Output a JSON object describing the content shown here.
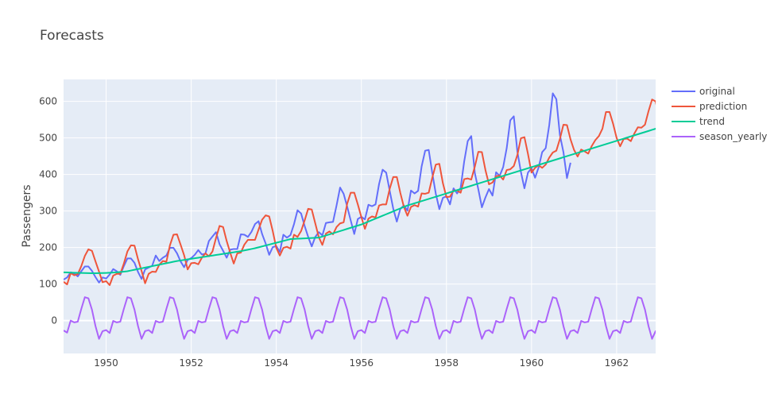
{
  "chart_data": {
    "type": "line",
    "title": "Forecasts",
    "xlabel": "",
    "ylabel": "Passengers",
    "xlim": [
      1949.0,
      1962.917
    ],
    "ylim": [
      -90,
      660
    ],
    "x_ticks": [
      1950,
      1952,
      1954,
      1956,
      1958,
      1960,
      1962
    ],
    "x_tick_labels": [
      "1950",
      "1952",
      "1954",
      "1956",
      "1958",
      "1960",
      "1962"
    ],
    "y_ticks": [
      0,
      100,
      200,
      300,
      400,
      500,
      600
    ],
    "y_tick_labels": [
      "0",
      "100",
      "200",
      "300",
      "400",
      "500",
      "600"
    ],
    "grid": true,
    "legend_position": "top-right",
    "x_start": 1949.0,
    "x_step": 0.08333,
    "series": [
      {
        "name": "original",
        "color": "#636efa",
        "values": [
          112,
          118,
          132,
          129,
          121,
          135,
          148,
          148,
          136,
          119,
          104,
          118,
          115,
          126,
          141,
          135,
          125,
          149,
          170,
          170,
          158,
          133,
          114,
          140,
          145,
          150,
          178,
          163,
          172,
          178,
          199,
          199,
          184,
          162,
          146,
          166,
          171,
          180,
          193,
          181,
          183,
          218,
          230,
          242,
          209,
          191,
          172,
          194,
          196,
          196,
          236,
          235,
          229,
          243,
          264,
          272,
          237,
          211,
          180,
          201,
          204,
          188,
          235,
          227,
          234,
          264,
          302,
          293,
          259,
          229,
          203,
          229,
          242,
          233,
          267,
          269,
          270,
          315,
          364,
          347,
          312,
          274,
          237,
          278,
          284,
          277,
          317,
          313,
          318,
          374,
          413,
          405,
          355,
          306,
          271,
          306,
          315,
          301,
          356,
          348,
          355,
          422,
          465,
          467,
          404,
          347,
          305,
          336,
          340,
          318,
          362,
          348,
          363,
          435,
          491,
          505,
          404,
          359,
          310,
          337,
          360,
          342,
          406,
          396,
          420,
          472,
          548,
          559,
          463,
          407,
          362,
          405,
          417,
          391,
          419,
          461,
          472,
          535,
          622,
          606,
          508,
          461,
          390,
          432
        ]
      },
      {
        "name": "prediction",
        "color": "#ef553b",
        "values": [
          106,
          99,
          130,
          124,
          127,
          149,
          177,
          195,
          191,
          162,
          134,
          105,
          108,
          97,
          123,
          128,
          128,
          156,
          189,
          206,
          205,
          168,
          136,
          102,
          128,
          134,
          133,
          153,
          163,
          161,
          206,
          235,
          236,
          208,
          179,
          140,
          157,
          158,
          154,
          172,
          184,
          176,
          189,
          226,
          259,
          256,
          218,
          186,
          156,
          184,
          186,
          208,
          221,
          221,
          221,
          249,
          276,
          288,
          285,
          245,
          199,
          178,
          199,
          202,
          197,
          235,
          229,
          245,
          274,
          306,
          304,
          266,
          228,
          207,
          238,
          244,
          236,
          256,
          266,
          269,
          320,
          350,
          350,
          318,
          283,
          251,
          279,
          285,
          282,
          315,
          318,
          318,
          361,
          393,
          393,
          349,
          311,
          287,
          311,
          316,
          312,
          348,
          347,
          350,
          391,
          427,
          429,
          376,
          338,
          339,
          356,
          356,
          350,
          387,
          389,
          386,
          421,
          462,
          461,
          412,
          373,
          378,
          395,
          397,
          386,
          412,
          414,
          423,
          453,
          499,
          502,
          456,
          405,
          418,
          425,
          418,
          427,
          446,
          460,
          465,
          497,
          536,
          535,
          496,
          467,
          449,
          468,
          463,
          457,
          478,
          494,
          505,
          525,
          571,
          571,
          539,
          500,
          477,
          497,
          498,
          491,
          512,
          529,
          528,
          536,
          573,
          605,
          600,
          556,
          522,
          504,
          524
        ]
      },
      {
        "name": "trend",
        "color": "#00cc96",
        "values": [
          132,
          131.7,
          131.3,
          131,
          130.7,
          130.3,
          130,
          129.8,
          129.7,
          129.5,
          129.8,
          130.2,
          130.5,
          131,
          131.5,
          132,
          133,
          134,
          135,
          137,
          139,
          141,
          143,
          145,
          147,
          149,
          151,
          153,
          155,
          157,
          159,
          161,
          163,
          164.5,
          166,
          167.5,
          169,
          170.5,
          172,
          173.5,
          175,
          176.5,
          178,
          179.5,
          181,
          182.5,
          184,
          185.5,
          187,
          188.5,
          190,
          192,
          194,
          196,
          198,
          200.5,
          203,
          205.5,
          208,
          210.5,
          213,
          215.5,
          218,
          220.5,
          223,
          223.5,
          224,
          224.5,
          225,
          225.5,
          226,
          226.5,
          227,
          230,
          233,
          236,
          239,
          242,
          245,
          248,
          251,
          254,
          257,
          260,
          263,
          267,
          271,
          275,
          279,
          283,
          287,
          291,
          295,
          299,
          303,
          307,
          311,
          315,
          318,
          321,
          324,
          327,
          330,
          333,
          336,
          339,
          342,
          345,
          348,
          351,
          354,
          357,
          360,
          363,
          366,
          369,
          372,
          375,
          378,
          381,
          384,
          387,
          390,
          393,
          396,
          399,
          402,
          405,
          408,
          411,
          414,
          417,
          420,
          423,
          426,
          429,
          432,
          435,
          438,
          441,
          444,
          447,
          450,
          453,
          456,
          459,
          462,
          465,
          468,
          471,
          474,
          477,
          480,
          483,
          486,
          489,
          492,
          495,
          498,
          501,
          504,
          507,
          510,
          513,
          516,
          519,
          522,
          525,
          528,
          531,
          534,
          537,
          540,
          543,
          546,
          549,
          552,
          555,
          558
        ]
      },
      {
        "name": "season_yearly",
        "color": "#ab63fa",
        "values": [
          -27,
          -33,
          0,
          -5,
          -3,
          32,
          64,
          61,
          30,
          -15,
          -50,
          -29,
          -26,
          -34,
          -1,
          -5,
          -3,
          32,
          64,
          61,
          30,
          -15,
          -50,
          -29,
          -26,
          -34,
          -1,
          -5,
          -3,
          32,
          64,
          61,
          30,
          -15,
          -50,
          -29,
          -26,
          -34,
          -1,
          -5,
          -3,
          32,
          64,
          61,
          30,
          -15,
          -50,
          -29,
          -26,
          -34,
          -1,
          -5,
          -3,
          32,
          64,
          61,
          30,
          -15,
          -50,
          -29,
          -26,
          -34,
          -1,
          -5,
          -3,
          32,
          64,
          61,
          30,
          -15,
          -50,
          -29,
          -26,
          -34,
          -1,
          -5,
          -3,
          32,
          64,
          61,
          30,
          -15,
          -50,
          -29,
          -26,
          -34,
          -1,
          -5,
          -3,
          32,
          64,
          61,
          30,
          -15,
          -50,
          -29,
          -26,
          -34,
          -1,
          -5,
          -3,
          32,
          64,
          61,
          30,
          -15,
          -50,
          -29,
          -26,
          -34,
          -1,
          -5,
          -3,
          32,
          64,
          61,
          30,
          -15,
          -50,
          -29,
          -26,
          -34,
          -1,
          -5,
          -3,
          32,
          64,
          61,
          30,
          -15,
          -50,
          -29,
          -26,
          -34,
          -1,
          -5,
          -3,
          32,
          64,
          61,
          30,
          -15,
          -50,
          -29,
          -26,
          -34,
          -1,
          -5,
          -3,
          32,
          64,
          61,
          30,
          -15,
          -50,
          -29,
          -26,
          -34,
          -1,
          -5,
          -3,
          32,
          64,
          61,
          30,
          -15,
          -50,
          -29,
          -26,
          -34,
          -1,
          -5,
          -3,
          32,
          64,
          61,
          30,
          -15,
          -50,
          -29
        ]
      }
    ]
  },
  "colors": {
    "plot_background": "#e5ecf6",
    "grid": "#ffffff",
    "text": "#444444"
  }
}
